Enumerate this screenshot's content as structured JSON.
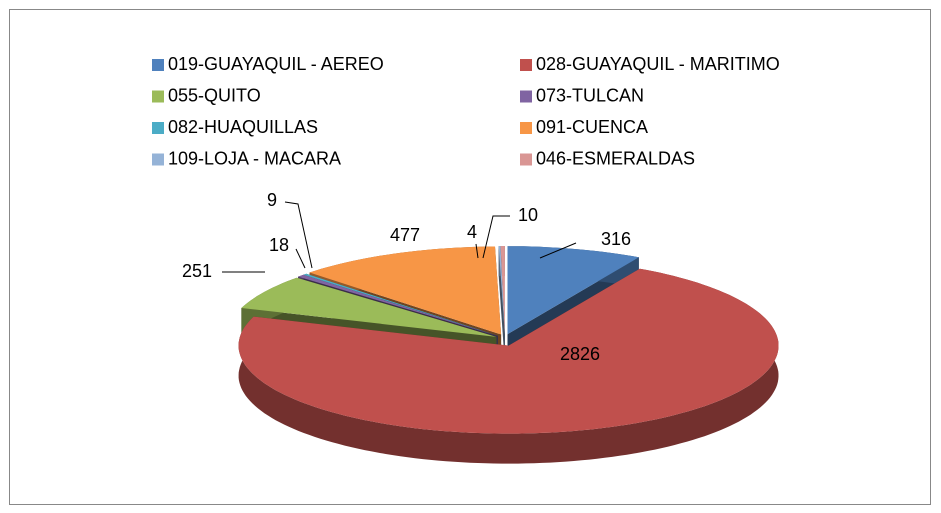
{
  "chart_data": {
    "type": "pie",
    "three_d": true,
    "categories": [
      "019-GUAYAQUIL - AEREO",
      "028-GUAYAQUIL - MARITIMO",
      "055-QUITO",
      "073-TULCAN",
      "082-HUAQUILLAS",
      "091-CUENCA",
      "109-LOJA - MACARA",
      "046-ESMERALDAS"
    ],
    "values": [
      316,
      2826,
      251,
      18,
      9,
      477,
      4,
      10
    ],
    "colors": [
      "#4f81bd",
      "#c0504d",
      "#9bbb59",
      "#8064a2",
      "#4bacc6",
      "#f79646",
      "#95b3d7",
      "#d99694"
    ],
    "legend": "top"
  }
}
